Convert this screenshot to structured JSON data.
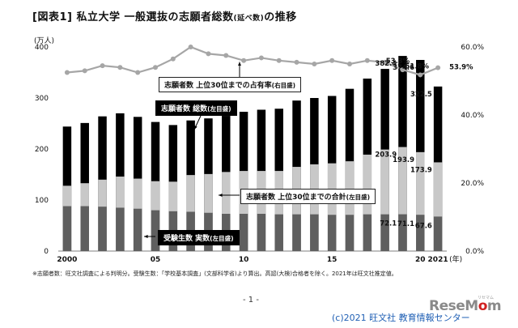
{
  "header": {
    "title_main": "[図表1] 私立大学 一般選抜の志願者総数",
    "title_small": "(延べ数)",
    "title_end": "の推移"
  },
  "chart_data": {
    "type": "bar",
    "title": "[図表1] 私立大学 一般選抜の志願者総数(延べ数)の推移",
    "left_axis_unit": "(万人)",
    "right_axis_unit": "",
    "x_unit": "(年)",
    "x": [
      2000,
      2001,
      2002,
      2003,
      2004,
      2005,
      2006,
      2007,
      2008,
      2009,
      2010,
      2011,
      2012,
      2013,
      2014,
      2015,
      2016,
      2017,
      2018,
      2019,
      2020,
      2021
    ],
    "x_tick_labels": [
      {
        "year": 2000,
        "label": "2000"
      },
      {
        "year": 2005,
        "label": "05"
      },
      {
        "year": 2010,
        "label": "10"
      },
      {
        "year": 2015,
        "label": "15"
      },
      {
        "year": 2020,
        "label": "20"
      },
      {
        "year": 2021,
        "label": "2021"
      }
    ],
    "ylim_left": [
      0,
      400
    ],
    "left_ticks": [
      "0",
      "100",
      "200",
      "300",
      "400"
    ],
    "ylim_right": [
      0,
      60
    ],
    "right_ticks": [
      "0.0%",
      "20.0%",
      "40.0%",
      "60.0%"
    ],
    "series": [
      {
        "name": "志願者数 総数(左目盛)",
        "kind": "bar",
        "color": "#000000",
        "values": [
          244,
          251,
          264,
          270,
          263,
          253,
          247,
          256,
          260,
          265,
          273,
          277,
          279,
          295,
          300,
          304,
          318,
          338,
          357,
          382.4,
          374.6,
          322.5
        ]
      },
      {
        "name": "志願者数 上位30位までの合計(左目盛)",
        "kind": "bar",
        "color": "#c8c8c8",
        "values": [
          128,
          133,
          140,
          146,
          142,
          137,
          136,
          149,
          151,
          155,
          157,
          157,
          157,
          165,
          170,
          172,
          176,
          189,
          199,
          203.9,
          193.9,
          173.9
        ]
      },
      {
        "name": "受験生数 実数(左目盛)",
        "kind": "bar",
        "color": "#5f5f5f",
        "values": [
          88,
          88,
          87,
          85,
          83,
          80,
          78,
          77,
          75,
          73,
          73,
          73,
          72,
          72,
          72,
          71,
          71,
          72,
          72,
          72.1,
          71.1,
          67.6
        ]
      },
      {
        "name": "志願者数 上位30位までの占有率(右目盛)",
        "kind": "line",
        "color": "#a6a6a6",
        "values": [
          52.5,
          53.0,
          54.5,
          54.0,
          52.5,
          54.0,
          56.5,
          60.0,
          58.0,
          57.5,
          56.0,
          56.8,
          56.0,
          55.5,
          55.0,
          56.0,
          55.0,
          56.0,
          55.5,
          53.3,
          51.8,
          53.9
        ]
      }
    ],
    "data_labels": {
      "total": {
        "2019": "382.4",
        "2020": "374.6",
        "2021": "322.5"
      },
      "top30": {
        "2019": "203.9",
        "2020": "193.9",
        "2021": "173.9"
      },
      "examinees": {
        "2019": "72.1",
        "2020": "71.1",
        "2021": "67.6"
      },
      "share": {
        "2019": "53.3%",
        "2020": "51.8%",
        "2021": "53.9%"
      }
    },
    "callouts": {
      "share": {
        "text": "志願者数 上位30位までの占有率",
        "small": "(右目盛)"
      },
      "total": {
        "text": "志願者数 総数",
        "small": "(左目盛)"
      },
      "top30": {
        "text": "志願者数 上位30位までの合計",
        "small": "(左目盛)"
      },
      "examinees": {
        "text": "受験生数 実数",
        "small": "(左目盛)"
      }
    },
    "grid": false
  },
  "footnote": "※志願者数：旺文社調査による判明分。受験生数：「学校基本調査」(文部科学省)より算出。高認(大検)合格者を除く。2021年は旺文社推定値。",
  "page_number": "- 1 -",
  "copyright": "(c)2021 旺文社 教育情報センター",
  "logo": {
    "text_a": "Rese",
    "text_b": "M",
    "text_c": "o",
    "text_d": "m",
    "sub": "リセマム"
  }
}
